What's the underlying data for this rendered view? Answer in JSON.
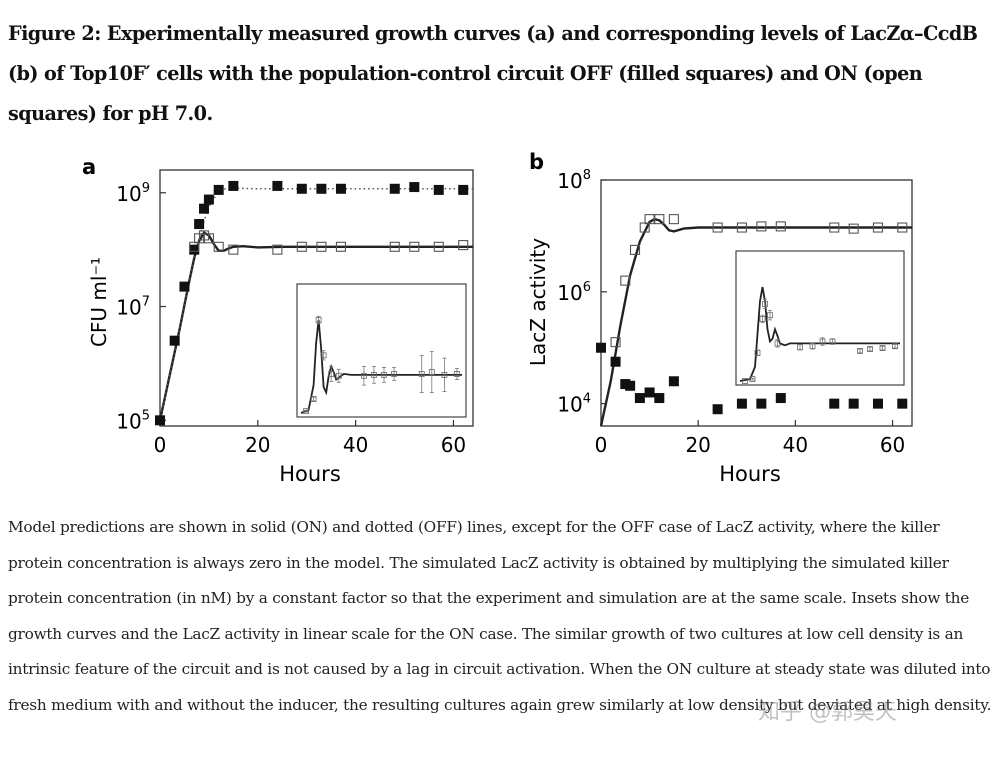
{
  "title": "Figure 2: Experimentally measured growth curves (a) and corresponding levels of LacZα–CcdB (b) of Top10F′ cells with the population-control circuit OFF (filled squares) and ON (open squares) for pH 7.0.",
  "caption": "Model predictions are shown in solid (ON) and dotted (OFF) lines, except for the OFF case of LacZ activity, where the killer protein concentration is always zero in the model. The simulated LacZ activity is obtained by multiplying the simulated killer protein concentration (in nM) by a constant factor so that the experiment and simulation are at the same scale. Insets show the growth curves and the LacZ activity in linear scale for the ON case. The similar growth of two cultures at low cell density is an intrinsic feature of the circuit and is not caused by a lag in circuit activation. When the ON culture at steady state was diluted into fresh medium with and without the inducer, the resulting cultures again grew similarly at low density but deviated at high density.",
  "watermark": "知乎 @郭昊天",
  "chart_data": [
    {
      "panel": "a",
      "type": "scatter",
      "xlabel": "Hours",
      "ylabel": "CFU ml⁻¹",
      "xlim": [
        0,
        64
      ],
      "ylim_log10": [
        4.9,
        9.4
      ],
      "xticks": [
        0,
        20,
        40,
        60
      ],
      "xtick_labels": [
        "0",
        "20",
        "40",
        "60"
      ],
      "yticks_log10": [
        5,
        7,
        9
      ],
      "ytick_labels": [
        {
          "base": "10",
          "exp": "5"
        },
        {
          "base": "10",
          "exp": "7"
        },
        {
          "base": "10",
          "exp": "9"
        }
      ],
      "series": [
        {
          "name": "OFF (filled squares)",
          "marker": "filled-square",
          "x": [
            0,
            3,
            5,
            7,
            8,
            9,
            10,
            12,
            15,
            24,
            29,
            33,
            37,
            48,
            52,
            57,
            62
          ],
          "log10_y": [
            5.0,
            6.4,
            7.35,
            8.0,
            8.45,
            8.72,
            8.88,
            9.05,
            9.12,
            9.12,
            9.07,
            9.07,
            9.07,
            9.07,
            9.1,
            9.05,
            9.05
          ]
        },
        {
          "name": "ON (open squares)",
          "marker": "open-square",
          "x": [
            7,
            8,
            9,
            10,
            12,
            15,
            24,
            29,
            33,
            37,
            48,
            52,
            57,
            62
          ],
          "log10_y": [
            8.05,
            8.2,
            8.25,
            8.2,
            8.05,
            8.0,
            8.0,
            8.05,
            8.05,
            8.05,
            8.05,
            8.05,
            8.05,
            8.08
          ]
        },
        {
          "name": "Model ON (solid)",
          "line": "solid",
          "x": [
            0,
            2,
            4,
            6,
            7,
            8,
            9,
            10,
            11,
            12,
            13,
            14,
            15,
            17,
            20,
            25,
            30,
            40,
            50,
            64
          ],
          "log10_y": [
            5.0,
            5.8,
            6.6,
            7.45,
            7.85,
            8.15,
            8.3,
            8.25,
            8.1,
            7.98,
            7.98,
            8.02,
            8.05,
            8.06,
            8.04,
            8.05,
            8.05,
            8.05,
            8.05,
            8.05
          ]
        },
        {
          "name": "Model OFF (dotted)",
          "line": "dotted",
          "x": [
            0,
            2,
            4,
            6,
            8,
            9,
            10,
            11,
            12,
            13,
            14,
            16,
            20,
            30,
            40,
            50,
            64
          ],
          "log10_y": [
            5.0,
            5.8,
            6.6,
            7.45,
            8.2,
            8.5,
            8.75,
            8.9,
            9.0,
            9.06,
            9.08,
            9.08,
            9.07,
            9.07,
            9.07,
            9.07,
            9.07
          ]
        }
      ],
      "inset": {
        "description": "growth curve in linear scale, ON case",
        "open_points": [
          {
            "x": 2,
            "y": 0.02,
            "err": 0.01
          },
          {
            "x": 5,
            "y": 0.15,
            "err": 0.02
          },
          {
            "x": 7,
            "y": 1.0,
            "err": 0.04
          },
          {
            "x": 9,
            "y": 0.62,
            "err": 0.05
          },
          {
            "x": 12,
            "y": 0.42,
            "err": 0.08
          },
          {
            "x": 15,
            "y": 0.4,
            "err": 0.07
          },
          {
            "x": 25,
            "y": 0.4,
            "err": 0.1
          },
          {
            "x": 29,
            "y": 0.41,
            "err": 0.09
          },
          {
            "x": 33,
            "y": 0.41,
            "err": 0.08
          },
          {
            "x": 37,
            "y": 0.42,
            "err": 0.07
          },
          {
            "x": 48,
            "y": 0.42,
            "err": 0.2
          },
          {
            "x": 52,
            "y": 0.44,
            "err": 0.22
          },
          {
            "x": 57,
            "y": 0.41,
            "err": 0.18
          },
          {
            "x": 62,
            "y": 0.42,
            "err": 0.06
          }
        ],
        "model": {
          "x": [
            0,
            3,
            5,
            6,
            7,
            8,
            9,
            10,
            11,
            12,
            13,
            14,
            15,
            17,
            20,
            25,
            30,
            40,
            50,
            64
          ],
          "y": [
            0.0,
            0.03,
            0.3,
            0.75,
            1.0,
            0.7,
            0.28,
            0.22,
            0.4,
            0.5,
            0.44,
            0.36,
            0.38,
            0.42,
            0.41,
            0.41,
            0.41,
            0.41,
            0.41,
            0.41
          ]
        }
      }
    },
    {
      "panel": "b",
      "type": "scatter",
      "xlabel": "Hours",
      "ylabel": "LacZ activity",
      "xlim": [
        0,
        64
      ],
      "ylim_log10": [
        3.6,
        8.0
      ],
      "xticks": [
        0,
        20,
        40,
        60
      ],
      "xtick_labels": [
        "0",
        "20",
        "40",
        "60"
      ],
      "yticks_log10": [
        4,
        6,
        8
      ],
      "ytick_labels": [
        {
          "base": "10",
          "exp": "4"
        },
        {
          "base": "10",
          "exp": "6"
        },
        {
          "base": "10",
          "exp": "8"
        }
      ],
      "series": [
        {
          "name": "OFF (filled squares)",
          "marker": "filled-square",
          "x": [
            0,
            3,
            5,
            6,
            8,
            10,
            12,
            15,
            24,
            29,
            33,
            37,
            48,
            52,
            57,
            62
          ],
          "log10_y": [
            5.0,
            4.75,
            4.35,
            4.32,
            4.1,
            4.2,
            4.1,
            4.4,
            3.9,
            4.0,
            4.0,
            4.1,
            4.0,
            4.0,
            4.0,
            4.0
          ]
        },
        {
          "name": "ON (open squares)",
          "marker": "open-square",
          "x": [
            3,
            5,
            7,
            9,
            10,
            12,
            15,
            24,
            29,
            33,
            37,
            48,
            52,
            57,
            62
          ],
          "log10_y": [
            5.1,
            6.2,
            6.75,
            7.15,
            7.3,
            7.3,
            7.3,
            7.15,
            7.15,
            7.17,
            7.17,
            7.15,
            7.13,
            7.15,
            7.15
          ]
        },
        {
          "name": "Model ON (solid)",
          "line": "solid",
          "x": [
            0,
            2,
            4,
            6,
            8,
            10,
            11,
            12,
            13,
            14,
            15,
            17,
            20,
            25,
            30,
            40,
            50,
            64
          ],
          "log10_y": [
            3.6,
            4.4,
            5.4,
            6.3,
            6.9,
            7.25,
            7.3,
            7.28,
            7.2,
            7.1,
            7.08,
            7.13,
            7.15,
            7.15,
            7.15,
            7.15,
            7.15,
            7.15
          ]
        }
      ],
      "inset": {
        "description": "LacZ activity in linear scale, ON case",
        "open_points": [
          {
            "x": 2,
            "y": 0.0,
            "err": 0.0
          },
          {
            "x": 5,
            "y": 0.02,
            "err": 0.01
          },
          {
            "x": 7,
            "y": 0.3,
            "err": 0.03
          },
          {
            "x": 9,
            "y": 0.66,
            "err": 0.04
          },
          {
            "x": 10,
            "y": 0.82,
            "err": 0.05
          },
          {
            "x": 12,
            "y": 0.7,
            "err": 0.05
          },
          {
            "x": 15,
            "y": 0.4,
            "err": 0.04
          },
          {
            "x": 24,
            "y": 0.36,
            "err": 0.03
          },
          {
            "x": 29,
            "y": 0.37,
            "err": 0.03
          },
          {
            "x": 33,
            "y": 0.42,
            "err": 0.04
          },
          {
            "x": 37,
            "y": 0.42,
            "err": 0.03
          },
          {
            "x": 48,
            "y": 0.32,
            "err": 0.02
          },
          {
            "x": 52,
            "y": 0.34,
            "err": 0.02
          },
          {
            "x": 57,
            "y": 0.35,
            "err": 0.02
          },
          {
            "x": 62,
            "y": 0.37,
            "err": 0.02
          }
        ],
        "model": {
          "x": [
            0,
            4,
            6,
            7,
            8,
            9,
            10,
            11,
            12,
            13,
            14,
            15,
            16,
            18,
            20,
            25,
            30,
            40,
            50,
            64
          ],
          "y": [
            0.0,
            0.02,
            0.15,
            0.5,
            0.85,
            1.0,
            0.85,
            0.55,
            0.42,
            0.45,
            0.55,
            0.48,
            0.4,
            0.38,
            0.4,
            0.4,
            0.4,
            0.4,
            0.4,
            0.4
          ]
        }
      }
    }
  ]
}
